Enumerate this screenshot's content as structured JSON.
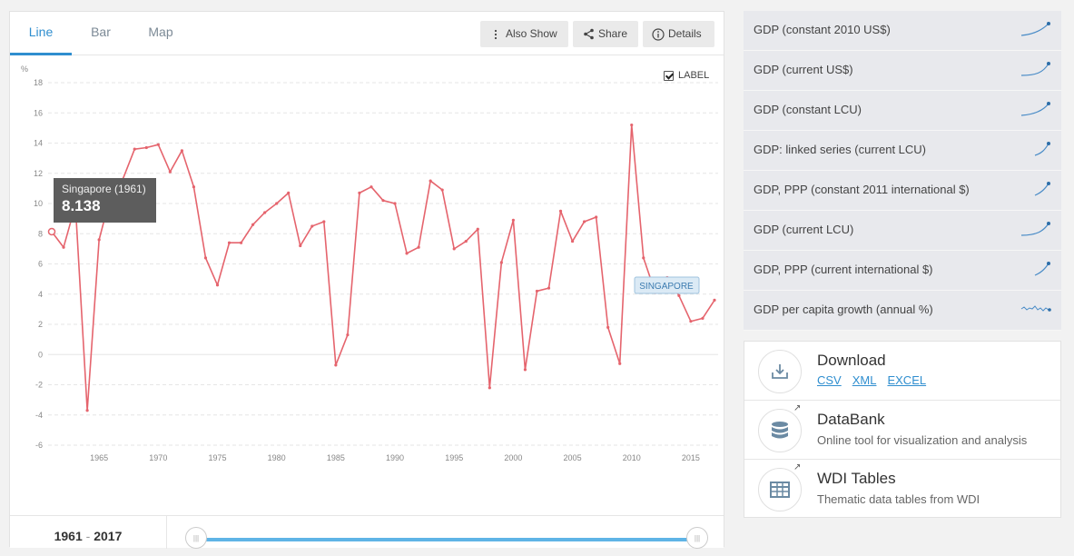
{
  "tabs": [
    {
      "label": "Line",
      "active": true
    },
    {
      "label": "Bar",
      "active": false
    },
    {
      "label": "Map",
      "active": false
    }
  ],
  "toolbar": {
    "also_show": "Also Show",
    "share": "Share",
    "details": "Details"
  },
  "label_toggle": {
    "label": "LABEL",
    "checked": true
  },
  "tooltip": {
    "title": "Singapore (1961)",
    "value": "8.138"
  },
  "range": {
    "start": "1961",
    "end": "2017",
    "separator": "-"
  },
  "colors": {
    "series": "#e5646d",
    "accent": "#2f8ecf",
    "label_box": "#dbeaf5"
  },
  "indicators": [
    {
      "label": "GDP (constant 2010 US$)",
      "spark": "rising-curve"
    },
    {
      "label": "GDP (current US$)",
      "spark": "rising-curve"
    },
    {
      "label": "GDP (constant LCU)",
      "spark": "rising-curve"
    },
    {
      "label": "GDP: linked series (current LCU)",
      "spark": "rising-curve"
    },
    {
      "label": "GDP, PPP (constant 2011 international $)",
      "spark": "rising-line"
    },
    {
      "label": "GDP (current LCU)",
      "spark": "rising-curve"
    },
    {
      "label": "GDP, PPP (current international $)",
      "spark": "rising-line"
    },
    {
      "label": "GDP per capita growth (annual %)",
      "spark": "wavy"
    }
  ],
  "resources": {
    "download": {
      "title": "Download",
      "links": [
        "CSV",
        "XML",
        "EXCEL"
      ]
    },
    "databank": {
      "title": "DataBank",
      "desc": "Online tool for visualization and analysis"
    },
    "wdi": {
      "title": "WDI Tables",
      "desc": "Thematic data tables from WDI"
    }
  },
  "chart_data": {
    "type": "line",
    "ylabel": "%",
    "ylim": [
      -6,
      18
    ],
    "yticks": [
      18,
      16,
      14,
      12,
      10,
      8,
      6,
      4,
      2,
      0,
      -2,
      -4,
      -6
    ],
    "xlim": [
      1961,
      2017
    ],
    "xticks": [
      1965,
      1970,
      1975,
      1980,
      1985,
      1990,
      1995,
      2000,
      2005,
      2010,
      2015
    ],
    "grid": true,
    "series": [
      {
        "name": "SINGAPORE",
        "x": [
          1961,
          1962,
          1963,
          1964,
          1965,
          1966,
          1967,
          1968,
          1969,
          1970,
          1971,
          1972,
          1973,
          1974,
          1975,
          1976,
          1977,
          1978,
          1979,
          1980,
          1981,
          1982,
          1983,
          1984,
          1985,
          1986,
          1987,
          1988,
          1989,
          1990,
          1991,
          1992,
          1993,
          1994,
          1995,
          1996,
          1997,
          1998,
          1999,
          2000,
          2001,
          2002,
          2003,
          2004,
          2005,
          2006,
          2007,
          2008,
          2009,
          2010,
          2011,
          2012,
          2013,
          2014,
          2015,
          2016,
          2017
        ],
        "values": [
          8.138,
          7.1,
          9.9,
          -3.7,
          7.6,
          10.6,
          11.6,
          13.6,
          13.7,
          13.9,
          12.1,
          13.5,
          11.1,
          6.4,
          4.6,
          7.4,
          7.4,
          8.6,
          9.4,
          10.0,
          10.7,
          7.2,
          8.5,
          8.8,
          -0.7,
          1.3,
          10.7,
          11.1,
          10.2,
          10.0,
          6.7,
          7.1,
          11.5,
          10.9,
          7.0,
          7.5,
          8.3,
          -2.2,
          6.1,
          8.9,
          -1.0,
          4.2,
          4.4,
          9.5,
          7.5,
          8.8,
          9.1,
          1.8,
          -0.6,
          15.2,
          6.4,
          4.1,
          5.1,
          3.9,
          2.2,
          2.4,
          3.6
        ]
      }
    ]
  }
}
